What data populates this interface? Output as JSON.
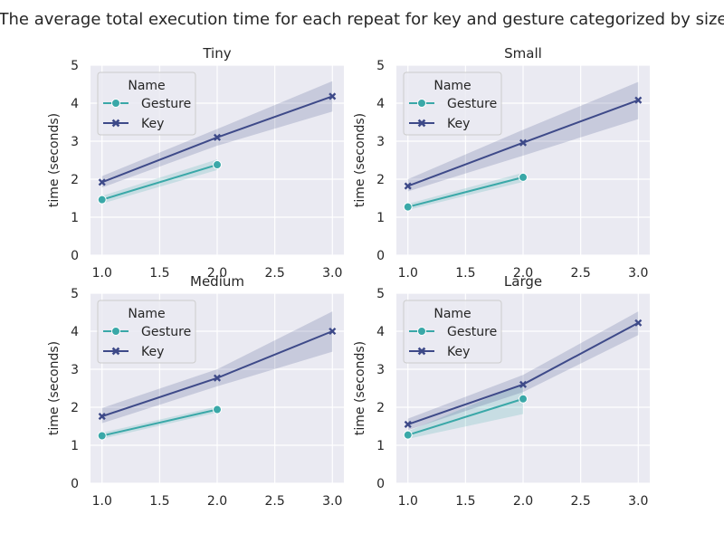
{
  "figure_title": "The average total execution time for each repeat for key and gesture categorized by size",
  "colors": {
    "panel_bg": "#EAEAF2",
    "grid": "#FFFFFF",
    "gesture": "#3AA8A8",
    "key": "#3E4A89",
    "text": "#262626"
  },
  "chart_data": [
    {
      "type": "line",
      "title": "Tiny",
      "ylabel": "time (seconds)",
      "xlabel": "",
      "xlim": [
        0.9,
        3.1
      ],
      "ylim": [
        0,
        5
      ],
      "xticks": [
        "1.0",
        "1.5",
        "2.0",
        "2.5",
        "3.0"
      ],
      "yticks": [
        "0",
        "1",
        "2",
        "3",
        "4",
        "5"
      ],
      "grid": true,
      "legend": {
        "title": "Name",
        "loc": "upper left"
      },
      "series": [
        {
          "name": "Gesture",
          "marker": "circle",
          "x": [
            1,
            2
          ],
          "y": [
            1.46,
            2.38
          ],
          "ci_low": [
            1.36,
            2.24
          ],
          "ci_high": [
            1.56,
            2.52
          ]
        },
        {
          "name": "Key",
          "marker": "x",
          "x": [
            1,
            2,
            3
          ],
          "y": [
            1.92,
            3.1,
            4.18
          ],
          "ci_low": [
            1.78,
            2.88,
            3.78
          ],
          "ci_high": [
            2.08,
            3.32,
            4.58
          ]
        }
      ]
    },
    {
      "type": "line",
      "title": "Small",
      "ylabel": "time (seconds)",
      "xlabel": "",
      "xlim": [
        0.9,
        3.1
      ],
      "ylim": [
        0,
        5
      ],
      "xticks": [
        "1.0",
        "1.5",
        "2.0",
        "2.5",
        "3.0"
      ],
      "yticks": [
        "0",
        "1",
        "2",
        "3",
        "4",
        "5"
      ],
      "grid": true,
      "legend": {
        "title": "Name",
        "loc": "upper left"
      },
      "series": [
        {
          "name": "Gesture",
          "marker": "circle",
          "x": [
            1,
            2
          ],
          "y": [
            1.27,
            2.05
          ],
          "ci_low": [
            1.19,
            1.93
          ],
          "ci_high": [
            1.35,
            2.17
          ]
        },
        {
          "name": "Key",
          "marker": "x",
          "x": [
            1,
            2,
            3
          ],
          "y": [
            1.82,
            2.96,
            4.08
          ],
          "ci_low": [
            1.68,
            2.62,
            3.58
          ],
          "ci_high": [
            2.0,
            3.3,
            4.56
          ]
        }
      ]
    },
    {
      "type": "line",
      "title": "Medium",
      "ylabel": "time (seconds)",
      "xlabel": "",
      "xlim": [
        0.9,
        3.1
      ],
      "ylim": [
        0,
        5
      ],
      "xticks": [
        "1.0",
        "1.5",
        "2.0",
        "2.5",
        "3.0"
      ],
      "yticks": [
        "0",
        "1",
        "2",
        "3",
        "4",
        "5"
      ],
      "grid": true,
      "legend": {
        "title": "Name",
        "loc": "upper left"
      },
      "series": [
        {
          "name": "Gesture",
          "marker": "circle",
          "x": [
            1,
            2
          ],
          "y": [
            1.25,
            1.94
          ],
          "ci_low": [
            1.17,
            1.86
          ],
          "ci_high": [
            1.33,
            2.02
          ]
        },
        {
          "name": "Key",
          "marker": "x",
          "x": [
            1,
            2,
            3
          ],
          "y": [
            1.76,
            2.77,
            4.0
          ],
          "ci_low": [
            1.58,
            2.55,
            3.46
          ],
          "ci_high": [
            1.98,
            3.0,
            4.52
          ]
        }
      ]
    },
    {
      "type": "line",
      "title": "Large",
      "ylabel": "time (seconds)",
      "xlabel": "",
      "xlim": [
        0.9,
        3.1
      ],
      "ylim": [
        0,
        5
      ],
      "xticks": [
        "1.0",
        "1.5",
        "2.0",
        "2.5",
        "3.0"
      ],
      "yticks": [
        "0",
        "1",
        "2",
        "3",
        "4",
        "5"
      ],
      "grid": true,
      "legend": {
        "title": "Name",
        "loc": "upper left"
      },
      "series": [
        {
          "name": "Gesture",
          "marker": "circle",
          "x": [
            1,
            2
          ],
          "y": [
            1.27,
            2.22
          ],
          "ci_low": [
            1.17,
            1.82
          ],
          "ci_high": [
            1.37,
            2.62
          ]
        },
        {
          "name": "Key",
          "marker": "x",
          "x": [
            1,
            2,
            3
          ],
          "y": [
            1.55,
            2.6,
            4.22
          ],
          "ci_low": [
            1.4,
            2.4,
            3.9
          ],
          "ci_high": [
            1.7,
            2.85,
            4.52
          ]
        }
      ]
    }
  ]
}
